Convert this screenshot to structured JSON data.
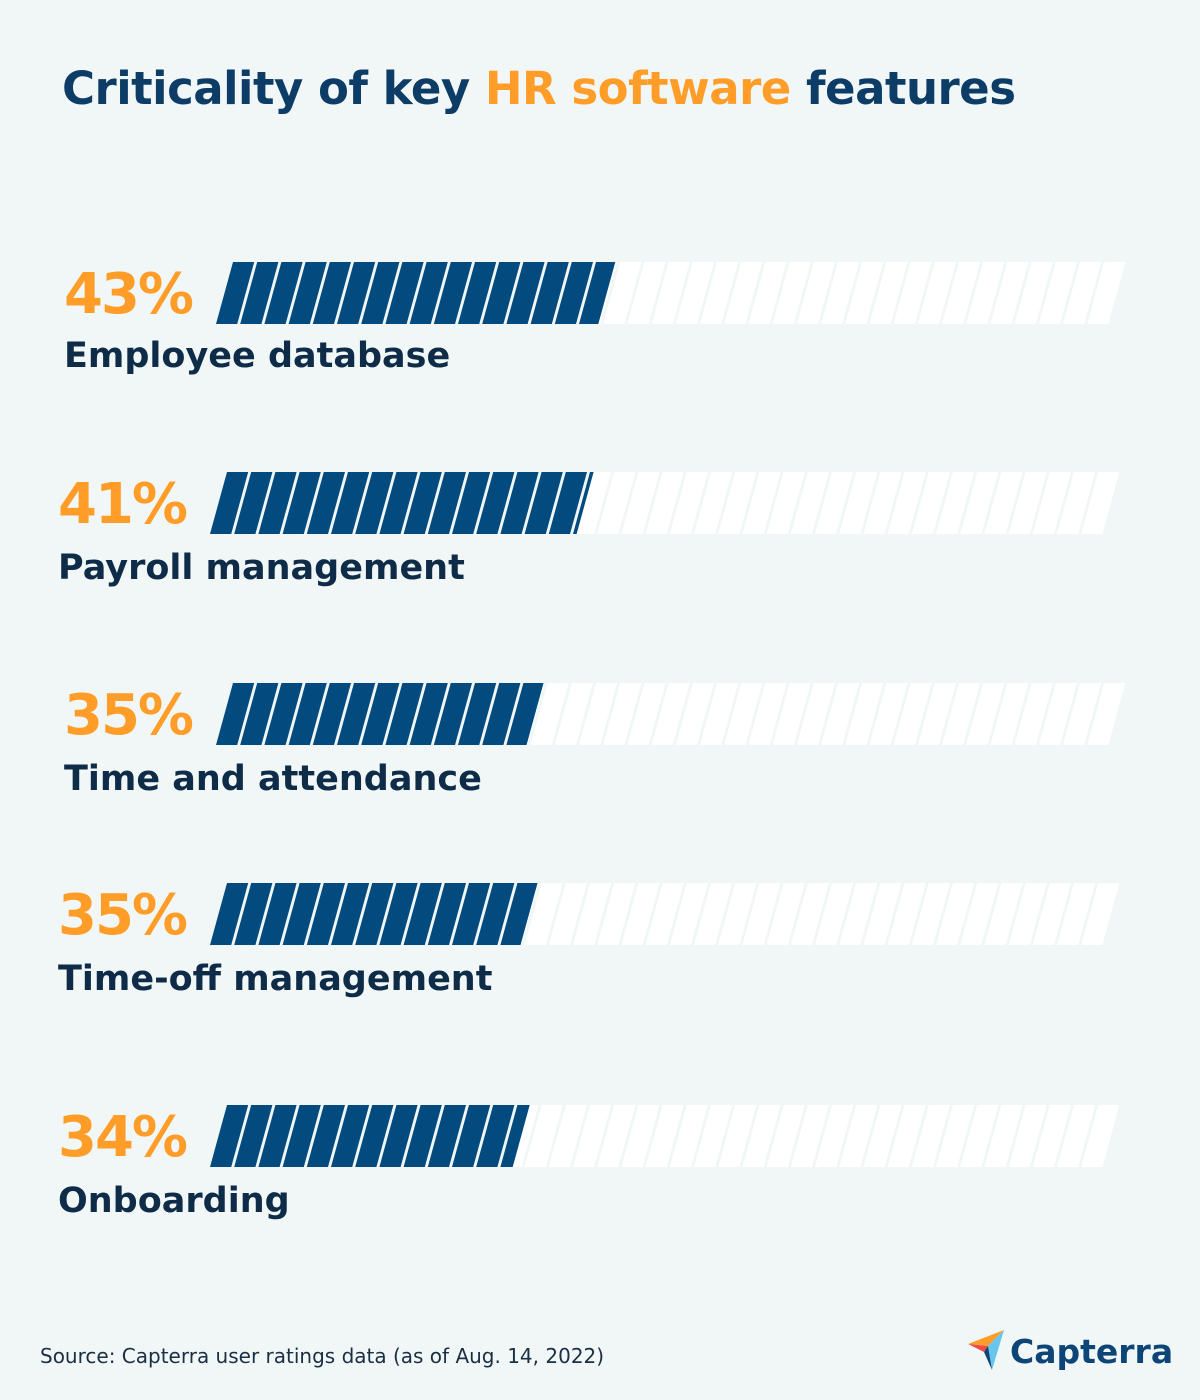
{
  "title": {
    "part1": "Criticality of key ",
    "highlight": "HR software",
    "part2": " features"
  },
  "colors": {
    "filled": "#034b7e",
    "empty": "#ffffff",
    "percent": "#ff9d28",
    "title": "#0d3d66"
  },
  "chart_data": {
    "type": "bar",
    "orientation": "horizontal",
    "categories": [
      "Employee database",
      "Payroll management",
      "Time and attendance",
      "Time-off management",
      "Onboarding"
    ],
    "values": [
      43,
      41,
      35,
      35,
      34
    ],
    "value_labels": [
      "43%",
      "41%",
      "35%",
      "35%",
      "34%"
    ],
    "xlim": [
      0,
      100
    ],
    "title": "Criticality of key HR software features"
  },
  "source": "Source: Capterra user ratings data (as of Aug. 14, 2022)",
  "logo": "Capterra"
}
